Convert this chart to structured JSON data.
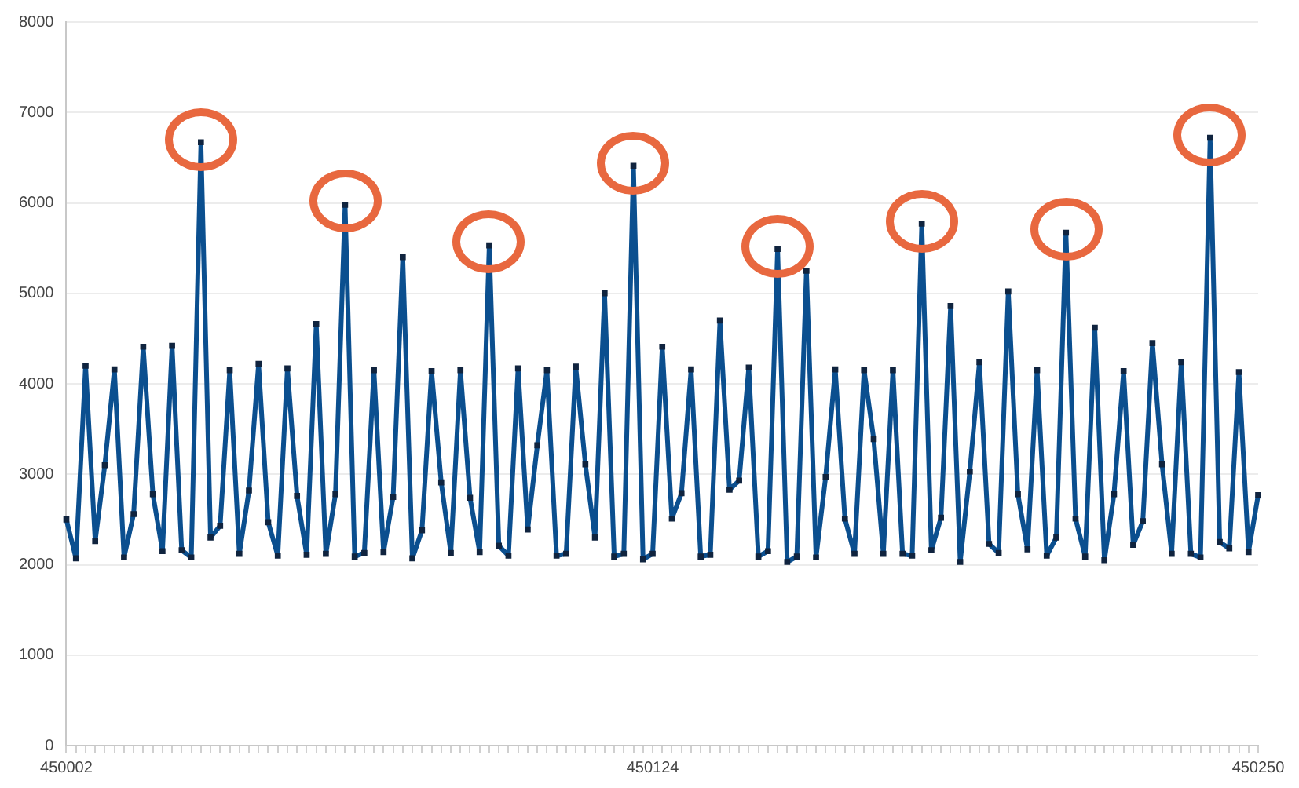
{
  "chart_data": {
    "type": "line",
    "categories": [
      "450002",
      null,
      null,
      null,
      null,
      null,
      null,
      null,
      null,
      null,
      null,
      null,
      null,
      null,
      null,
      null,
      null,
      null,
      null,
      null,
      null,
      null,
      null,
      null,
      null,
      null,
      null,
      null,
      null,
      null,
      null,
      null,
      null,
      null,
      null,
      null,
      null,
      null,
      null,
      null,
      null,
      null,
      null,
      null,
      null,
      null,
      null,
      null,
      null,
      null,
      null,
      null,
      null,
      null,
      null,
      null,
      null,
      null,
      null,
      null,
      null,
      "450124",
      null,
      null,
      null,
      null,
      null,
      null,
      null,
      null,
      null,
      null,
      null,
      null,
      null,
      null,
      null,
      null,
      null,
      null,
      null,
      null,
      null,
      null,
      null,
      null,
      null,
      null,
      null,
      null,
      null,
      null,
      null,
      null,
      null,
      null,
      null,
      null,
      null,
      null,
      null,
      null,
      null,
      null,
      null,
      null,
      null,
      null,
      null,
      null,
      null,
      null,
      null,
      null,
      null,
      null,
      null,
      null,
      null,
      null,
      null,
      null,
      null,
      null,
      "450250"
    ],
    "series": [
      {
        "color": "#0b4f8f",
        "values": [
          2500,
          2070,
          4200,
          2260,
          3100,
          4160,
          2080,
          2560,
          4410,
          2780,
          2150,
          4420,
          2160,
          2080,
          6670,
          2300,
          2430,
          4150,
          2120,
          2820,
          4220,
          2470,
          2100,
          4170,
          2760,
          2110,
          4660,
          2120,
          2780,
          5980,
          2090,
          2130,
          4150,
          2140,
          2750,
          5400,
          2070,
          2380,
          4140,
          2910,
          2130,
          4150,
          2740,
          2140,
          5530,
          2210,
          2100,
          4170,
          2390,
          3320,
          4150,
          2100,
          2120,
          4190,
          3110,
          2300,
          5000,
          2090,
          2120,
          6410,
          2060,
          2120,
          4410,
          2510,
          2790,
          4160,
          2090,
          2110,
          4700,
          2830,
          2930,
          4180,
          2090,
          2150,
          5490,
          2030,
          2090,
          5250,
          2080,
          2970,
          4160,
          2510,
          2120,
          4150,
          3390,
          2120,
          4150,
          2120,
          2100,
          5770,
          2160,
          2520,
          4860,
          2030,
          3030,
          4240,
          2230,
          2130,
          5020,
          2780,
          2170,
          4150,
          2100,
          2300,
          5670,
          2510,
          2090,
          4620,
          2050,
          2780,
          4140,
          2220,
          2480,
          4450,
          3110,
          2120,
          4240,
          2120,
          2080,
          6720,
          2250,
          2180,
          4130,
          2140,
          2770
        ]
      }
    ],
    "ylim": [
      0,
      8000
    ],
    "yticks": [
      0,
      1000,
      2000,
      3000,
      4000,
      5000,
      6000,
      7000,
      8000
    ],
    "grid": "y",
    "marker": "square",
    "line_style": "solid"
  }
}
